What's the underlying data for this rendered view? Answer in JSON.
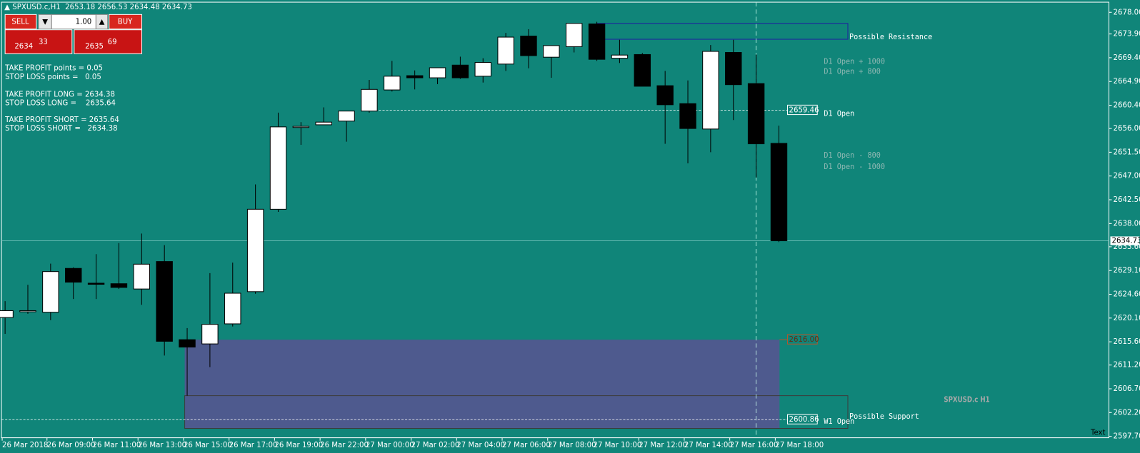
{
  "chart_data": {
    "type": "candlestick",
    "title": "SPXUSD.c,H1",
    "categories": [
      "26 Mar 2018",
      null,
      "26 Mar 09:00",
      null,
      "26 Mar 11:00",
      null,
      "26 Mar 13:00",
      null,
      "26 Mar 15:00",
      null,
      "26 Mar 17:00",
      null,
      "26 Mar 19:00",
      null,
      "26 Mar 22:00",
      null,
      "27 Mar 00:00",
      null,
      "27 Mar 02:00",
      null,
      "27 Mar 04:00",
      null,
      "27 Mar 06:00",
      null,
      "27 Mar 08:00",
      null,
      "27 Mar 10:00",
      null,
      "27 Mar 12:00",
      null,
      "27 Mar 14:00",
      null,
      "27 Mar 16:00",
      null,
      "27 Mar 18:00"
    ],
    "open": [
      2620.2,
      2621.3,
      2621.2,
      2629.5,
      2626.7,
      2626.6,
      2625.6,
      2630.8,
      2616.0,
      2615.2,
      2619.0,
      2625.1,
      2640.7,
      2656.2,
      2656.7,
      2657.4,
      2659.3,
      2663.3,
      2666.0,
      2665.6,
      2668.0,
      2665.9,
      2668.2,
      2673.5,
      2669.5,
      2671.5,
      2675.8,
      2669.3,
      2670.0,
      2664.1,
      2660.7,
      2655.9,
      2670.4,
      2664.5,
      2653.18
    ],
    "high": [
      2623.3,
      2626.4,
      2630.4,
      2629.7,
      2632.2,
      2634.3,
      2636.1,
      2633.9,
      2618.2,
      2628.6,
      2630.6,
      2645.4,
      2659.0,
      2657.2,
      2660.0,
      2659.3,
      2665.2,
      2668.8,
      2667.0,
      2667.5,
      2669.6,
      2669.3,
      2674.1,
      2674.8,
      2671.7,
      2675.9,
      2676.2,
      2672.8,
      2670.3,
      2666.9,
      2665.1,
      2671.8,
      2672.8,
      2670.0,
      2656.53
    ],
    "low": [
      2617.1,
      2620.9,
      2619.7,
      2623.7,
      2623.7,
      2625.6,
      2622.6,
      2613.0,
      2605.4,
      2610.8,
      2618.5,
      2624.7,
      2640.2,
      2652.9,
      2656.7,
      2653.5,
      2659.0,
      2663.0,
      2663.4,
      2664.4,
      2665.4,
      2664.7,
      2666.9,
      2667.4,
      2665.6,
      2670.4,
      2668.8,
      2668.4,
      2664.0,
      2653.1,
      2649.4,
      2651.5,
      2657.6,
      2646.7,
      2634.48
    ],
    "close": [
      2621.5,
      2621.5,
      2628.9,
      2626.9,
      2626.6,
      2625.9,
      2630.3,
      2615.7,
      2614.6,
      2618.9,
      2624.8,
      2640.7,
      2656.3,
      2656.4,
      2657.2,
      2659.3,
      2663.4,
      2665.9,
      2665.6,
      2667.5,
      2665.6,
      2668.5,
      2673.3,
      2669.8,
      2671.7,
      2675.9,
      2669.1,
      2669.9,
      2664.0,
      2660.5,
      2656.0,
      2670.6,
      2664.3,
      2653.1,
      2634.73
    ],
    "up_color": "#ffffff",
    "down_color": "#000000",
    "background": "#108579",
    "ylim": [
      2597.43,
      2679.92
    ],
    "yticks": [
      {
        "value": 2678,
        "label": "2678.00"
      },
      {
        "value": 2673.9,
        "label": "2673.90"
      },
      {
        "value": 2669.4,
        "label": "2669.40"
      },
      {
        "value": 2664.9,
        "label": "2664.90"
      },
      {
        "value": 2660.4,
        "label": "2660.40"
      },
      {
        "value": 2656,
        "label": "2656.00"
      },
      {
        "value": 2651.5,
        "label": "2651.50"
      },
      {
        "value": 2647,
        "label": "2647.00"
      },
      {
        "value": 2642.5,
        "label": "2642.50"
      },
      {
        "value": 2638,
        "label": "2638.00"
      },
      {
        "value": 2633.6,
        "label": "2633.60"
      },
      {
        "value": 2629.1,
        "label": "2629.10"
      },
      {
        "value": 2624.6,
        "label": "2624.60"
      },
      {
        "value": 2620.1,
        "label": "2620.10"
      },
      {
        "value": 2615.6,
        "label": "2615.60"
      },
      {
        "value": 2611.2,
        "label": "2611.20"
      },
      {
        "value": 2606.7,
        "label": "2606.70"
      },
      {
        "value": 2602.2,
        "label": "2602.20"
      },
      {
        "value": 2597.7,
        "label": "2597.70"
      }
    ],
    "d1_open": {
      "label": "D1 Open",
      "value": 2659.46
    },
    "w1_open": {
      "label": "W1 Open",
      "value": 2600.86
    },
    "zone_level": {
      "value": 2616,
      "label": "2616.00"
    },
    "d1_offsets": [
      "D1 Open + 1000",
      "D1 Open + 800",
      "D1 Open - 800",
      "D1 Open - 1000"
    ],
    "zones": [
      {
        "name": "Possible Resistance",
        "top": 2675.9,
        "bottom": 2672.9
      },
      {
        "top": 2616,
        "bottom": 2599.2
      },
      {
        "name": "Possible Support",
        "top": 2605.4,
        "bottom": 2599.2
      }
    ],
    "watermark": "SPXUSD.c H1",
    "corner_text": "Text",
    "panel": {
      "sell": "SELL",
      "buy": "BUY",
      "lot": "1.00",
      "bid_big": "2634",
      "bid_small": "33",
      "ask_big": "2635",
      "ask_small": "69",
      "lines": [
        "TAKE PROFIT points = 0.05",
        "STOP LOSS points =   0.05",
        "TAKE PROFIT LONG = 2634.38",
        "STOP LOSS LONG =    2635.64",
        "TAKE PROFIT SHORT = 2635.64",
        "STOP LOSS SHORT =   2634.38"
      ]
    }
  }
}
